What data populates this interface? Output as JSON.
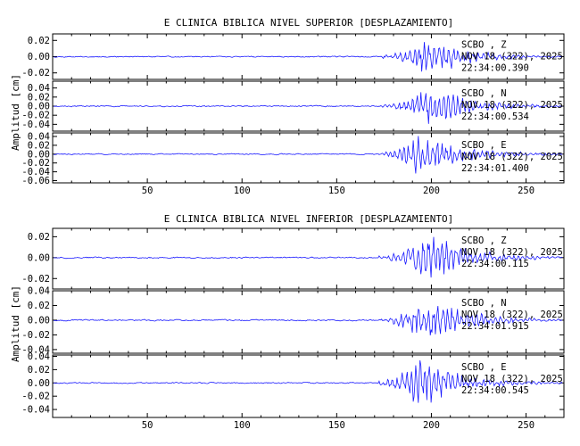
{
  "chart_data": [
    {
      "type": "line",
      "title": "E CLINICA BIBLICA NIVEL SUPERIOR [DESPLAZAMIENTO]",
      "ylabel": "Amplitud [cm]",
      "xlabel": "",
      "xlim": [
        0,
        270
      ],
      "x_ticks": [
        "50",
        "100",
        "150",
        "200",
        "250"
      ],
      "panels": [
        {
          "name": "SCBO , Z",
          "date": "NOV 18 (322), 2025",
          "time": "22:34:00.390",
          "ylim": [
            -0.028,
            0.028
          ],
          "y_ticks": [
            "0.02",
            "0.00",
            "-0.02"
          ],
          "noise": 0.0006,
          "onset": 173,
          "peak_t": 199,
          "peak": 0.026,
          "decay": 0.05,
          "period": 2.6,
          "seed": 11
        },
        {
          "name": "SCBO , N",
          "date": "NOV 18 (322), 2025",
          "time": "22:34:00.534",
          "ylim": [
            -0.055,
            0.055
          ],
          "y_ticks": [
            "0.04",
            "0.02",
            "0.00",
            "-0.02",
            "-0.04"
          ],
          "noise": 0.0012,
          "onset": 173,
          "peak_t": 199,
          "peak": 0.05,
          "decay": 0.05,
          "period": 2.5,
          "seed": 23
        },
        {
          "name": "SCBO , E",
          "date": "NOV 18 (322), 2025",
          "time": "22:34:01.400",
          "ylim": [
            -0.065,
            0.048
          ],
          "y_ticks": [
            "0.04",
            "0.02",
            "0.00",
            "-0.02",
            "-0.04",
            "-0.06"
          ],
          "noise": 0.0012,
          "onset": 172,
          "peak_t": 193,
          "peak": 0.052,
          "decay": 0.045,
          "period": 2.5,
          "seed": 37
        }
      ]
    },
    {
      "type": "line",
      "title": "E CLINICA BIBLICA NIVEL INFERIOR [DESPLAZAMIENTO]",
      "ylabel": "Amplitud [cm]",
      "xlabel": "",
      "xlim": [
        0,
        270
      ],
      "x_ticks": [
        "50",
        "100",
        "150",
        "200",
        "250"
      ],
      "panels": [
        {
          "name": "SCBO , Z",
          "date": "NOV 18 (322), 2025",
          "time": "22:34:00.115",
          "ylim": [
            -0.03,
            0.028
          ],
          "y_ticks": [
            "0.02",
            "0.00",
            "-0.02"
          ],
          "noise": 0.0006,
          "onset": 172,
          "peak_t": 199,
          "peak": 0.027,
          "decay": 0.05,
          "period": 2.6,
          "seed": 51
        },
        {
          "name": "SCBO , N",
          "date": "NOV 18 (322), 2025",
          "time": "22:34:01.915",
          "ylim": [
            -0.045,
            0.04
          ],
          "y_ticks": [
            "0.04",
            "0.02",
            "0.00",
            "-0.02",
            "-0.04"
          ],
          "noise": 0.0008,
          "onset": 173,
          "peak_t": 197,
          "peak": 0.037,
          "decay": 0.05,
          "period": 2.6,
          "seed": 67
        },
        {
          "name": "SCBO , E",
          "date": "NOV 18 (322), 2025",
          "time": "22:34:00.545",
          "ylim": [
            -0.052,
            0.042
          ],
          "y_ticks": [
            "0.04",
            "0.02",
            "0.00",
            "-0.02",
            "-0.04"
          ],
          "noise": 0.0008,
          "onset": 172,
          "peak_t": 193,
          "peak": 0.045,
          "decay": 0.05,
          "period": 2.5,
          "seed": 83
        }
      ]
    }
  ],
  "colors": {
    "trace": "#1a1aff",
    "axis": "#000000"
  }
}
